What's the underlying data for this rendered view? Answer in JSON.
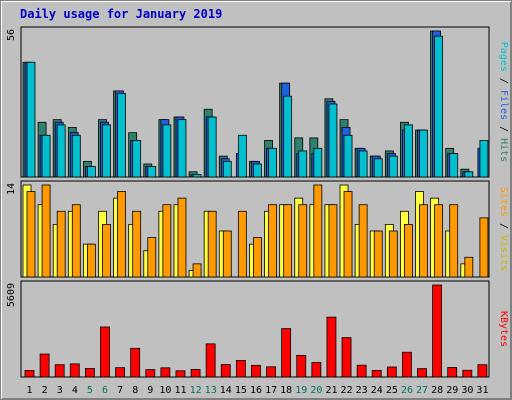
{
  "title": "Daily usage for January 2019",
  "colors": {
    "background": "#c0c0c0",
    "pages": "#00c0d0",
    "pages_dark": "#2c8070",
    "hits": "#308070",
    "files": "#2060e0",
    "visits": "#ffff40",
    "sites": "#ff9900",
    "kbytes": "#ff0000",
    "weekend_label": "#007060",
    "title": "#0000cc"
  },
  "right_labels": {
    "top": [
      "Pages",
      "Files",
      "Hits"
    ],
    "middle": [
      "Sites",
      "Visits"
    ],
    "bottom": [
      "KBytes"
    ]
  },
  "chart_data": [
    {
      "type": "bar",
      "panel": "top",
      "categories": [
        "1",
        "2",
        "3",
        "4",
        "5",
        "6",
        "7",
        "8",
        "9",
        "10",
        "11",
        "12",
        "13",
        "14",
        "15",
        "16",
        "17",
        "18",
        "19",
        "20",
        "21",
        "22",
        "23",
        "24",
        "25",
        "26",
        "27",
        "28",
        "29",
        "30",
        "31"
      ],
      "weekend_days": [
        "5",
        "6",
        "12",
        "13",
        "19",
        "20",
        "26",
        "27"
      ],
      "ylim": [
        0,
        56
      ],
      "ytick": "56",
      "series": [
        {
          "name": "Hits",
          "values": [
            44,
            21,
            22,
            19,
            6,
            22,
            33,
            17,
            5,
            22,
            23,
            2,
            26,
            8,
            0,
            6,
            14,
            36,
            15,
            15,
            30,
            22,
            11,
            8,
            10,
            21,
            18,
            56,
            11,
            3,
            0
          ]
        },
        {
          "name": "Files",
          "values": [
            44,
            16,
            21,
            17,
            4,
            21,
            33,
            14,
            4,
            22,
            23,
            1,
            23,
            7,
            9,
            6,
            11,
            36,
            9,
            9,
            29,
            19,
            11,
            8,
            9,
            18,
            18,
            56,
            9,
            2,
            11
          ]
        },
        {
          "name": "Pages",
          "values": [
            44,
            16,
            20,
            16,
            4,
            20,
            32,
            14,
            4,
            20,
            22,
            1,
            23,
            6,
            16,
            5,
            11,
            31,
            10,
            11,
            28,
            16,
            10,
            7,
            8,
            20,
            18,
            54,
            9,
            2,
            14
          ]
        }
      ]
    },
    {
      "type": "bar",
      "panel": "middle",
      "categories": [
        "1",
        "2",
        "3",
        "4",
        "5",
        "6",
        "7",
        "8",
        "9",
        "10",
        "11",
        "12",
        "13",
        "14",
        "15",
        "16",
        "17",
        "18",
        "19",
        "20",
        "21",
        "22",
        "23",
        "24",
        "25",
        "26",
        "27",
        "28",
        "29",
        "30",
        "31"
      ],
      "ylim": [
        0,
        14
      ],
      "ytick": "14",
      "series": [
        {
          "name": "Visits",
          "values": [
            14,
            11,
            8,
            10,
            5,
            10,
            12,
            8,
            4,
            10,
            11,
            1,
            10,
            7,
            0,
            5,
            10,
            11,
            12,
            11,
            11,
            14,
            8,
            7,
            8,
            10,
            13,
            12,
            7,
            2,
            0
          ]
        },
        {
          "name": "Sites",
          "values": [
            13,
            14,
            10,
            11,
            5,
            8,
            13,
            10,
            6,
            11,
            12,
            2,
            10,
            7,
            10,
            6,
            11,
            11,
            11,
            14,
            11,
            13,
            11,
            7,
            7,
            8,
            11,
            11,
            11,
            3,
            9
          ]
        }
      ]
    },
    {
      "type": "bar",
      "panel": "bottom",
      "categories": [
        "1",
        "2",
        "3",
        "4",
        "5",
        "6",
        "7",
        "8",
        "9",
        "10",
        "11",
        "12",
        "13",
        "14",
        "15",
        "16",
        "17",
        "18",
        "19",
        "20",
        "21",
        "22",
        "23",
        "24",
        "25",
        "26",
        "27",
        "28",
        "29",
        "30",
        "31"
      ],
      "ylim": [
        0,
        5609
      ],
      "ytick": "5609",
      "series": [
        {
          "name": "KBytes",
          "values": [
            400,
            1400,
            750,
            800,
            520,
            3050,
            570,
            1750,
            450,
            560,
            380,
            460,
            2020,
            760,
            1010,
            710,
            620,
            2950,
            1320,
            880,
            3650,
            2400,
            720,
            400,
            610,
            1510,
            510,
            5609,
            580,
            410,
            750
          ]
        }
      ]
    }
  ]
}
